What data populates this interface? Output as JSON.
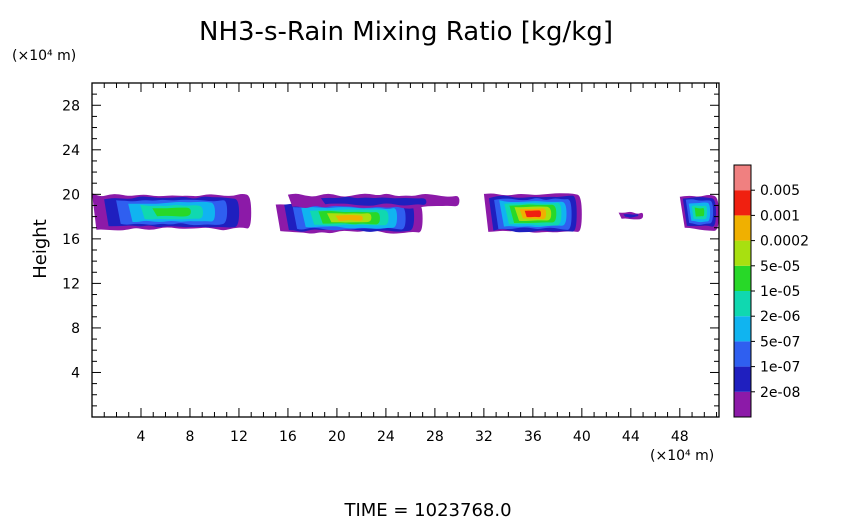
{
  "chart_data": {
    "type": "heatmap",
    "title": "NH3-s-Rain Mixing Ratio [kg/kg]",
    "xlabel": "",
    "ylabel": "Height",
    "x_unit": "(×10⁴ m)",
    "y_unit": "(×10⁴ m)",
    "xlim": [
      0,
      51.2
    ],
    "ylim": [
      0,
      30
    ],
    "x_ticks": [
      4,
      8,
      12,
      16,
      20,
      24,
      28,
      32,
      36,
      40,
      44,
      48
    ],
    "y_ticks": [
      4,
      8,
      12,
      16,
      20,
      24,
      28
    ],
    "colorbar": {
      "levels": [
        "2e-08",
        "1e-07",
        "5e-07",
        "2e-06",
        "1e-05",
        "5e-05",
        "0.0002",
        "0.001",
        "0.005"
      ],
      "colors": [
        "#8c1aa8",
        "#1f1fbf",
        "#2f5ff0",
        "#10b4f0",
        "#10d8b0",
        "#28d828",
        "#a8e010",
        "#f0b000",
        "#f02010",
        "#f08080"
      ]
    },
    "regions": [
      {
        "x": [
          0,
          13
        ],
        "y": [
          16.8,
          20
        ],
        "peak": "1e-05"
      },
      {
        "x": [
          15,
          27
        ],
        "y": [
          16.5,
          19.3
        ],
        "peak": "0.0002"
      },
      {
        "x": [
          16,
          30
        ],
        "y": [
          18.8,
          20
        ],
        "peak": "2e-08"
      },
      {
        "x": [
          32,
          40
        ],
        "y": [
          16.5,
          20
        ],
        "peak": "0.001"
      },
      {
        "x": [
          43,
          45
        ],
        "y": [
          17.8,
          18.4
        ],
        "peak": "2e-08"
      },
      {
        "x": [
          48,
          51.2
        ],
        "y": [
          16.8,
          20
        ],
        "peak": "1e-05"
      }
    ]
  },
  "footer": {
    "time_label": "TIME  =  1023768.0"
  }
}
